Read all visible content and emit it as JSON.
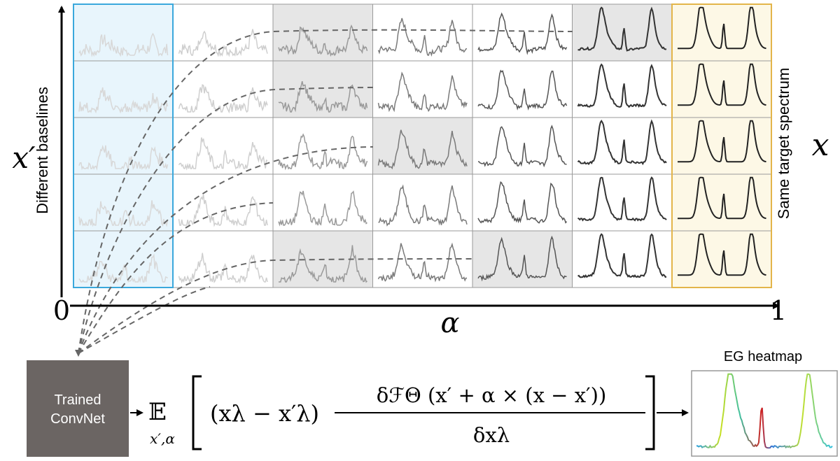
{
  "axes": {
    "y_label": "x′",
    "y_caption": "Different baselines",
    "x_label": "α",
    "x_start": "0",
    "x_end": "1",
    "right_label": "x",
    "right_caption": "Same target spectrum"
  },
  "grid": {
    "rows": 5,
    "columns": 7,
    "shaded_cells": [
      [
        0,
        2
      ],
      [
        0,
        5
      ],
      [
        1,
        2
      ],
      [
        2,
        3
      ],
      [
        4,
        2
      ],
      [
        4,
        4
      ]
    ],
    "colors": {
      "baseline_highlight": "#e8f5fc",
      "baseline_border": "#3aa8dc",
      "target_highlight": "#fdf8e6",
      "target_border": "#e3b54a",
      "shaded_cell": "#e6e6e6",
      "cell_border": "#9a9a9a"
    }
  },
  "model_box": {
    "line1": "Trained",
    "line2": "ConvNet",
    "color": "#6b6563"
  },
  "formula": {
    "expectation": "𝔼",
    "subscript": "x′,α",
    "left_term": "(xλ − x′λ)",
    "numerator": "δℱΘ (x′ + α × (x − x′))",
    "denominator": "δxλ"
  },
  "heatmap": {
    "title": "EG heatmap"
  }
}
